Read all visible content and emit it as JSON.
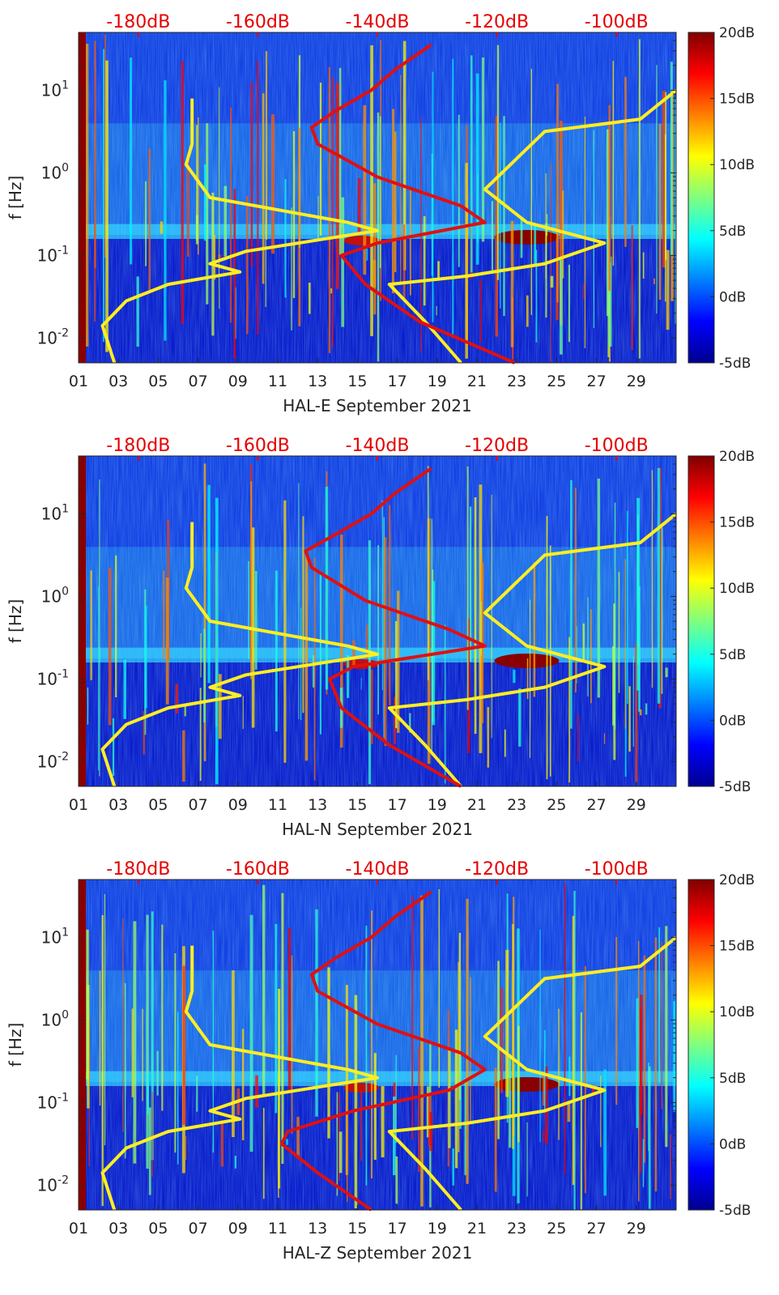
{
  "chart_data": [
    {
      "type": "heatmap",
      "title": "HAL-E September 2021",
      "xlabel": "HAL-E September 2021",
      "ylabel": "f [Hz]",
      "x_ticks": [
        "01",
        "03",
        "05",
        "07",
        "09",
        "11",
        "13",
        "15",
        "17",
        "19",
        "21",
        "23",
        "25",
        "27",
        "29"
      ],
      "x_range_days": [
        1,
        31
      ],
      "y_ticks": [
        "10^-2",
        "10^-1",
        "10^0",
        "10^1"
      ],
      "y_range_log10": [
        -2.3,
        1.7
      ],
      "top_axis_ticks": [
        "-180dB",
        "-160dB",
        "-140dB",
        "-120dB",
        "-100dB"
      ],
      "top_axis_range_db": [
        -190,
        -90
      ],
      "colorbar": {
        "ticks": [
          "20dB",
          "15dB",
          "10dB",
          "5dB",
          "0dB",
          "-5dB"
        ],
        "range_db": [
          -5,
          20
        ]
      },
      "series": [
        {
          "name": "yellow model curve",
          "color": "#ffee22",
          "points": [
            [
              -184,
              -2.3
            ],
            [
              -186,
              -1.85
            ],
            [
              -182,
              -1.55
            ],
            [
              -175,
              -1.35
            ],
            [
              -163,
              -1.2
            ],
            [
              -168,
              -1.1
            ],
            [
              -162,
              -0.95
            ],
            [
              -140,
              -0.7
            ],
            [
              -145,
              -0.6
            ],
            [
              -168,
              -0.3
            ],
            [
              -172,
              0.1
            ],
            [
              -171,
              0.35
            ],
            [
              -171,
              0.9
            ]
          ],
          "points2": [
            [
              -126,
              -2.3
            ],
            [
              -132,
              -1.8
            ],
            [
              -138,
              -1.35
            ],
            [
              -125,
              -1.25
            ],
            [
              -112,
              -1.1
            ],
            [
              -102,
              -0.85
            ],
            [
              -115,
              -0.6
            ],
            [
              -122,
              -0.2
            ],
            [
              -112,
              0.5
            ],
            [
              -96,
              0.65
            ],
            [
              -90,
              1.0
            ]
          ]
        },
        {
          "name": "red model curve",
          "color": "#e01010",
          "points": [
            [
              -117,
              -2.3
            ],
            [
              -133,
              -1.8
            ],
            [
              -142,
              -1.35
            ],
            [
              -146,
              -1.0
            ],
            [
              -140,
              -0.85
            ],
            [
              -122,
              -0.6
            ],
            [
              -126,
              -0.4
            ],
            [
              -140,
              -0.05
            ],
            [
              -150,
              0.35
            ],
            [
              -151,
              0.55
            ],
            [
              -147,
              0.75
            ],
            [
              -141,
              1.0
            ],
            [
              -137,
              1.25
            ],
            [
              -131,
              1.55
            ]
          ]
        }
      ]
    },
    {
      "type": "heatmap",
      "title": "HAL-N September 2021",
      "xlabel": "HAL-N September 2021",
      "ylabel": "f [Hz]",
      "x_ticks": [
        "01",
        "03",
        "05",
        "07",
        "09",
        "11",
        "13",
        "15",
        "17",
        "19",
        "21",
        "23",
        "25",
        "27",
        "29"
      ],
      "x_range_days": [
        1,
        31
      ],
      "y_ticks": [
        "10^-2",
        "10^-1",
        "10^0",
        "10^1"
      ],
      "y_range_log10": [
        -2.3,
        1.7
      ],
      "top_axis_ticks": [
        "-180dB",
        "-160dB",
        "-140dB",
        "-120dB",
        "-100dB"
      ],
      "top_axis_range_db": [
        -190,
        -90
      ],
      "colorbar": {
        "ticks": [
          "20dB",
          "15dB",
          "10dB",
          "5dB",
          "0dB",
          "-5dB"
        ],
        "range_db": [
          -5,
          20
        ]
      },
      "series": [
        {
          "name": "yellow model curve",
          "color": "#ffee22",
          "points": [
            [
              -184,
              -2.3
            ],
            [
              -186,
              -1.85
            ],
            [
              -182,
              -1.55
            ],
            [
              -175,
              -1.35
            ],
            [
              -163,
              -1.2
            ],
            [
              -168,
              -1.1
            ],
            [
              -162,
              -0.95
            ],
            [
              -140,
              -0.7
            ],
            [
              -145,
              -0.6
            ],
            [
              -168,
              -0.3
            ],
            [
              -172,
              0.1
            ],
            [
              -171,
              0.35
            ],
            [
              -171,
              0.9
            ]
          ],
          "points2": [
            [
              -126,
              -2.3
            ],
            [
              -132,
              -1.8
            ],
            [
              -138,
              -1.35
            ],
            [
              -125,
              -1.25
            ],
            [
              -112,
              -1.1
            ],
            [
              -102,
              -0.85
            ],
            [
              -115,
              -0.6
            ],
            [
              -122,
              -0.2
            ],
            [
              -112,
              0.5
            ],
            [
              -96,
              0.65
            ],
            [
              -90,
              1.0
            ]
          ]
        },
        {
          "name": "red model curve",
          "color": "#e01010",
          "points": [
            [
              -126,
              -2.3
            ],
            [
              -138,
              -1.8
            ],
            [
              -146,
              -1.35
            ],
            [
              -148,
              -1.0
            ],
            [
              -144,
              -0.85
            ],
            [
              -122,
              -0.6
            ],
            [
              -128,
              -0.4
            ],
            [
              -142,
              -0.05
            ],
            [
              -151,
              0.35
            ],
            [
              -152,
              0.55
            ],
            [
              -147,
              0.75
            ],
            [
              -141,
              1.0
            ],
            [
              -137,
              1.25
            ],
            [
              -131,
              1.55
            ]
          ]
        }
      ]
    },
    {
      "type": "heatmap",
      "title": "HAL-Z September 2021",
      "xlabel": "HAL-Z September 2021",
      "ylabel": "f [Hz]",
      "x_ticks": [
        "01",
        "03",
        "05",
        "07",
        "09",
        "11",
        "13",
        "15",
        "17",
        "19",
        "21",
        "23",
        "25",
        "27",
        "29"
      ],
      "x_range_days": [
        1,
        31
      ],
      "y_ticks": [
        "10^-2",
        "10^-1",
        "10^0",
        "10^1"
      ],
      "y_range_log10": [
        -2.3,
        1.7
      ],
      "top_axis_ticks": [
        "-180dB",
        "-160dB",
        "-140dB",
        "-120dB",
        "-100dB"
      ],
      "top_axis_range_db": [
        -190,
        -90
      ],
      "colorbar": {
        "ticks": [
          "20dB",
          "15dB",
          "10dB",
          "5dB",
          "0dB",
          "-5dB"
        ],
        "range_db": [
          -5,
          20
        ]
      },
      "series": [
        {
          "name": "yellow model curve",
          "color": "#ffee22",
          "points": [
            [
              -184,
              -2.3
            ],
            [
              -186,
              -1.85
            ],
            [
              -182,
              -1.55
            ],
            [
              -175,
              -1.35
            ],
            [
              -163,
              -1.2
            ],
            [
              -168,
              -1.1
            ],
            [
              -162,
              -0.95
            ],
            [
              -140,
              -0.7
            ],
            [
              -145,
              -0.6
            ],
            [
              -168,
              -0.3
            ],
            [
              -172,
              0.1
            ],
            [
              -171,
              0.35
            ],
            [
              -171,
              0.9
            ]
          ],
          "points2": [
            [
              -126,
              -2.3
            ],
            [
              -132,
              -1.8
            ],
            [
              -138,
              -1.35
            ],
            [
              -125,
              -1.25
            ],
            [
              -112,
              -1.1
            ],
            [
              -102,
              -0.85
            ],
            [
              -115,
              -0.6
            ],
            [
              -122,
              -0.2
            ],
            [
              -112,
              0.5
            ],
            [
              -96,
              0.65
            ],
            [
              -90,
              1.0
            ]
          ]
        },
        {
          "name": "red model curve",
          "color": "#e01010",
          "points": [
            [
              -141,
              -2.3
            ],
            [
              -150,
              -1.85
            ],
            [
              -156,
              -1.5
            ],
            [
              -155,
              -1.35
            ],
            [
              -144,
              -1.1
            ],
            [
              -128,
              -0.85
            ],
            [
              -122,
              -0.6
            ],
            [
              -126,
              -0.4
            ],
            [
              -140,
              -0.05
            ],
            [
              -150,
              0.35
            ],
            [
              -151,
              0.55
            ],
            [
              -147,
              0.75
            ],
            [
              -141,
              1.0
            ],
            [
              -137,
              1.25
            ],
            [
              -131,
              1.55
            ]
          ]
        }
      ]
    }
  ]
}
